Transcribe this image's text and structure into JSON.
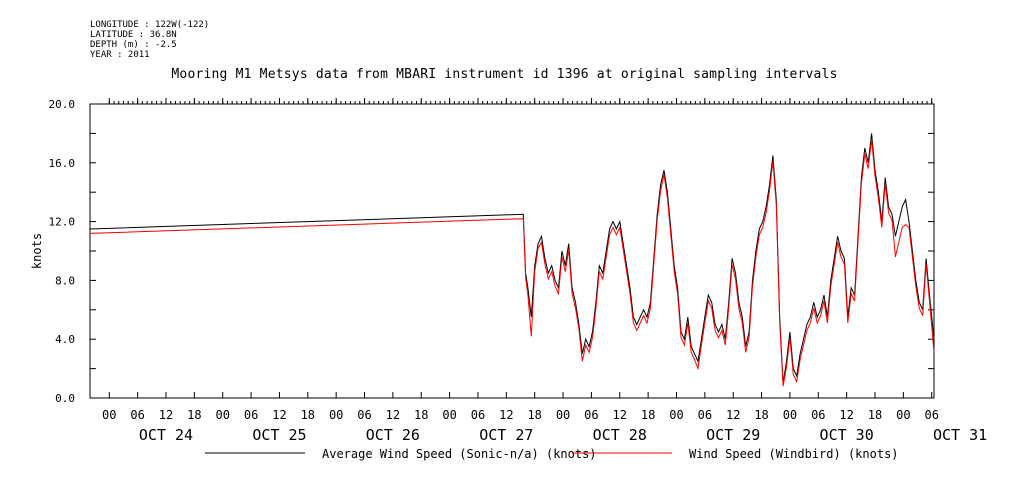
{
  "header": {
    "longitude": "LONGITUDE : 122W(-122)",
    "latitude": "LATITUDE : 36.8N",
    "depth": "DEPTH (m) : -2.5",
    "year": "YEAR : 2011"
  },
  "chart_data": {
    "type": "line",
    "title": "Mooring M1 Metsys data from MBARI instrument id 1396 at original sampling intervals",
    "ylabel": "knots",
    "xlabel": "",
    "ylim": [
      0,
      20
    ],
    "xlim": [
      -0.17,
      7.27
    ],
    "y_ticks": [
      "0.0",
      "4.0",
      "8.0",
      "12.0",
      "16.0",
      "20.0"
    ],
    "x_hour_ticks": [
      "00",
      "06",
      "12",
      "18",
      "00",
      "06",
      "12",
      "18",
      "00",
      "06",
      "12",
      "18",
      "00",
      "06",
      "12",
      "18",
      "00",
      "06",
      "12",
      "18",
      "00",
      "06",
      "12",
      "18",
      "00",
      "06",
      "12",
      "18",
      "00",
      "06"
    ],
    "x_day_labels": [
      "OCT 24",
      "OCT 25",
      "OCT 26",
      "OCT 27",
      "OCT 28",
      "OCT 29",
      "OCT 30",
      "OCT 31"
    ],
    "x_units": "days since OCT 24 00:00 (2011)",
    "grid": false,
    "legend_position": "bottom",
    "series": [
      {
        "name": "Average Wind Speed (Sonic-n/a) (knots)",
        "color": "#000000",
        "x": [
          -0.17,
          3.65,
          3.67,
          3.69,
          3.72,
          3.75,
          3.78,
          3.81,
          3.84,
          3.87,
          3.9,
          3.93,
          3.96,
          3.99,
          4.02,
          4.05,
          4.08,
          4.11,
          4.14,
          4.17,
          4.2,
          4.23,
          4.26,
          4.29,
          4.32,
          4.35,
          4.38,
          4.41,
          4.44,
          4.47,
          4.5,
          4.53,
          4.56,
          4.59,
          4.62,
          4.65,
          4.68,
          4.71,
          4.74,
          4.77,
          4.8,
          4.83,
          4.86,
          4.89,
          4.92,
          4.95,
          4.98,
          5.01,
          5.04,
          5.07,
          5.1,
          5.13,
          5.16,
          5.19,
          5.22,
          5.25,
          5.28,
          5.31,
          5.34,
          5.37,
          5.4,
          5.43,
          5.46,
          5.49,
          5.52,
          5.55,
          5.58,
          5.61,
          5.64,
          5.67,
          5.7,
          5.73,
          5.76,
          5.79,
          5.82,
          5.85,
          5.88,
          5.91,
          5.94,
          5.97,
          6.0,
          6.03,
          6.06,
          6.09,
          6.12,
          6.15,
          6.18,
          6.21,
          6.24,
          6.27,
          6.3,
          6.33,
          6.36,
          6.39,
          6.42,
          6.45,
          6.48,
          6.51,
          6.54,
          6.57,
          6.6,
          6.63,
          6.66,
          6.69,
          6.72,
          6.75,
          6.78,
          6.81,
          6.84,
          6.87,
          6.9,
          6.93,
          6.96,
          6.99,
          7.02,
          7.05,
          7.08,
          7.11,
          7.14,
          7.17,
          7.2,
          7.23,
          7.27
        ],
        "y": [
          11.5,
          12.5,
          8.5,
          7.5,
          5.5,
          9.0,
          10.5,
          11.0,
          9.5,
          8.5,
          9.0,
          8.0,
          7.5,
          10.0,
          9.0,
          10.5,
          7.5,
          6.5,
          5.0,
          3.0,
          4.0,
          3.5,
          4.5,
          6.5,
          9.0,
          8.5,
          10.0,
          11.5,
          12.0,
          11.5,
          12.0,
          10.5,
          9.0,
          7.5,
          5.5,
          5.0,
          5.5,
          6.0,
          5.5,
          6.5,
          9.5,
          12.5,
          14.5,
          15.5,
          14.0,
          11.5,
          9.0,
          7.5,
          4.5,
          4.0,
          5.5,
          3.5,
          3.0,
          2.5,
          4.0,
          5.5,
          7.0,
          6.5,
          5.0,
          4.5,
          5.0,
          4.0,
          6.5,
          9.5,
          8.5,
          6.5,
          5.5,
          3.5,
          4.5,
          8.0,
          10.0,
          11.5,
          12.0,
          13.0,
          14.5,
          16.5,
          13.5,
          5.5,
          1.0,
          2.5,
          4.5,
          2.0,
          1.5,
          3.0,
          4.0,
          5.0,
          5.5,
          6.5,
          5.5,
          6.0,
          7.0,
          5.5,
          8.0,
          9.5,
          11.0,
          10.0,
          9.5,
          5.5,
          7.5,
          7.0,
          11.0,
          15.0,
          17.0,
          16.0,
          18.0,
          15.5,
          14.0,
          12.0,
          15.0,
          13.0,
          12.5,
          11.0,
          12.0,
          13.0,
          13.5,
          12.0,
          10.0,
          8.0,
          6.5,
          6.0,
          9.5,
          7.0,
          4.0
        ]
      },
      {
        "name": "Wind Speed (Windbird) (knots)",
        "color": "#ff0000",
        "x": [
          -0.17,
          3.65,
          3.67,
          3.69,
          3.72,
          3.75,
          3.78,
          3.81,
          3.84,
          3.87,
          3.9,
          3.93,
          3.96,
          3.99,
          4.02,
          4.05,
          4.08,
          4.11,
          4.14,
          4.17,
          4.2,
          4.23,
          4.26,
          4.29,
          4.32,
          4.35,
          4.38,
          4.41,
          4.44,
          4.47,
          4.5,
          4.53,
          4.56,
          4.59,
          4.62,
          4.65,
          4.68,
          4.71,
          4.74,
          4.77,
          4.8,
          4.83,
          4.86,
          4.89,
          4.92,
          4.95,
          4.98,
          5.01,
          5.04,
          5.07,
          5.1,
          5.13,
          5.16,
          5.19,
          5.22,
          5.25,
          5.28,
          5.31,
          5.34,
          5.37,
          5.4,
          5.43,
          5.46,
          5.49,
          5.52,
          5.55,
          5.58,
          5.61,
          5.64,
          5.67,
          5.7,
          5.73,
          5.76,
          5.79,
          5.82,
          5.85,
          5.88,
          5.91,
          5.94,
          5.97,
          6.0,
          6.03,
          6.06,
          6.09,
          6.12,
          6.15,
          6.18,
          6.21,
          6.24,
          6.27,
          6.3,
          6.33,
          6.36,
          6.39,
          6.42,
          6.45,
          6.48,
          6.51,
          6.54,
          6.57,
          6.6,
          6.63,
          6.66,
          6.69,
          6.72,
          6.75,
          6.78,
          6.81,
          6.84,
          6.87,
          6.9,
          6.93,
          6.96,
          6.99,
          7.02,
          7.05,
          7.08,
          7.11,
          7.14,
          7.17,
          7.2,
          7.23,
          7.27
        ],
        "y": [
          11.2,
          12.2,
          8.2,
          7.0,
          4.2,
          8.6,
          10.2,
          10.6,
          9.1,
          8.1,
          8.6,
          7.6,
          7.1,
          9.6,
          8.6,
          10.1,
          7.1,
          6.1,
          4.7,
          2.5,
          3.6,
          3.1,
          4.1,
          6.1,
          8.6,
          8.1,
          9.6,
          11.1,
          11.6,
          11.1,
          11.6,
          10.1,
          8.6,
          7.1,
          5.1,
          4.6,
          5.1,
          5.6,
          5.1,
          6.1,
          9.1,
          12.1,
          14.1,
          15.2,
          13.6,
          11.1,
          8.6,
          7.1,
          4.1,
          3.6,
          5.1,
          3.1,
          2.6,
          2.0,
          3.6,
          5.1,
          6.6,
          6.1,
          4.6,
          4.1,
          4.6,
          3.6,
          6.1,
          9.1,
          8.1,
          6.1,
          5.1,
          3.1,
          4.1,
          7.6,
          9.6,
          11.1,
          11.6,
          12.6,
          14.1,
          16.1,
          13.1,
          5.1,
          0.8,
          2.1,
          4.1,
          1.6,
          1.1,
          2.6,
          3.6,
          4.6,
          5.1,
          6.1,
          5.1,
          5.6,
          6.6,
          5.1,
          7.6,
          9.1,
          10.6,
          9.6,
          9.1,
          5.1,
          7.1,
          6.6,
          10.6,
          14.6,
          16.6,
          15.6,
          17.6,
          15.1,
          13.6,
          11.6,
          14.6,
          12.6,
          12.1,
          9.6,
          10.6,
          11.6,
          11.8,
          11.6,
          9.6,
          7.6,
          6.1,
          5.6,
          9.1,
          6.6,
          3.1
        ]
      }
    ]
  }
}
